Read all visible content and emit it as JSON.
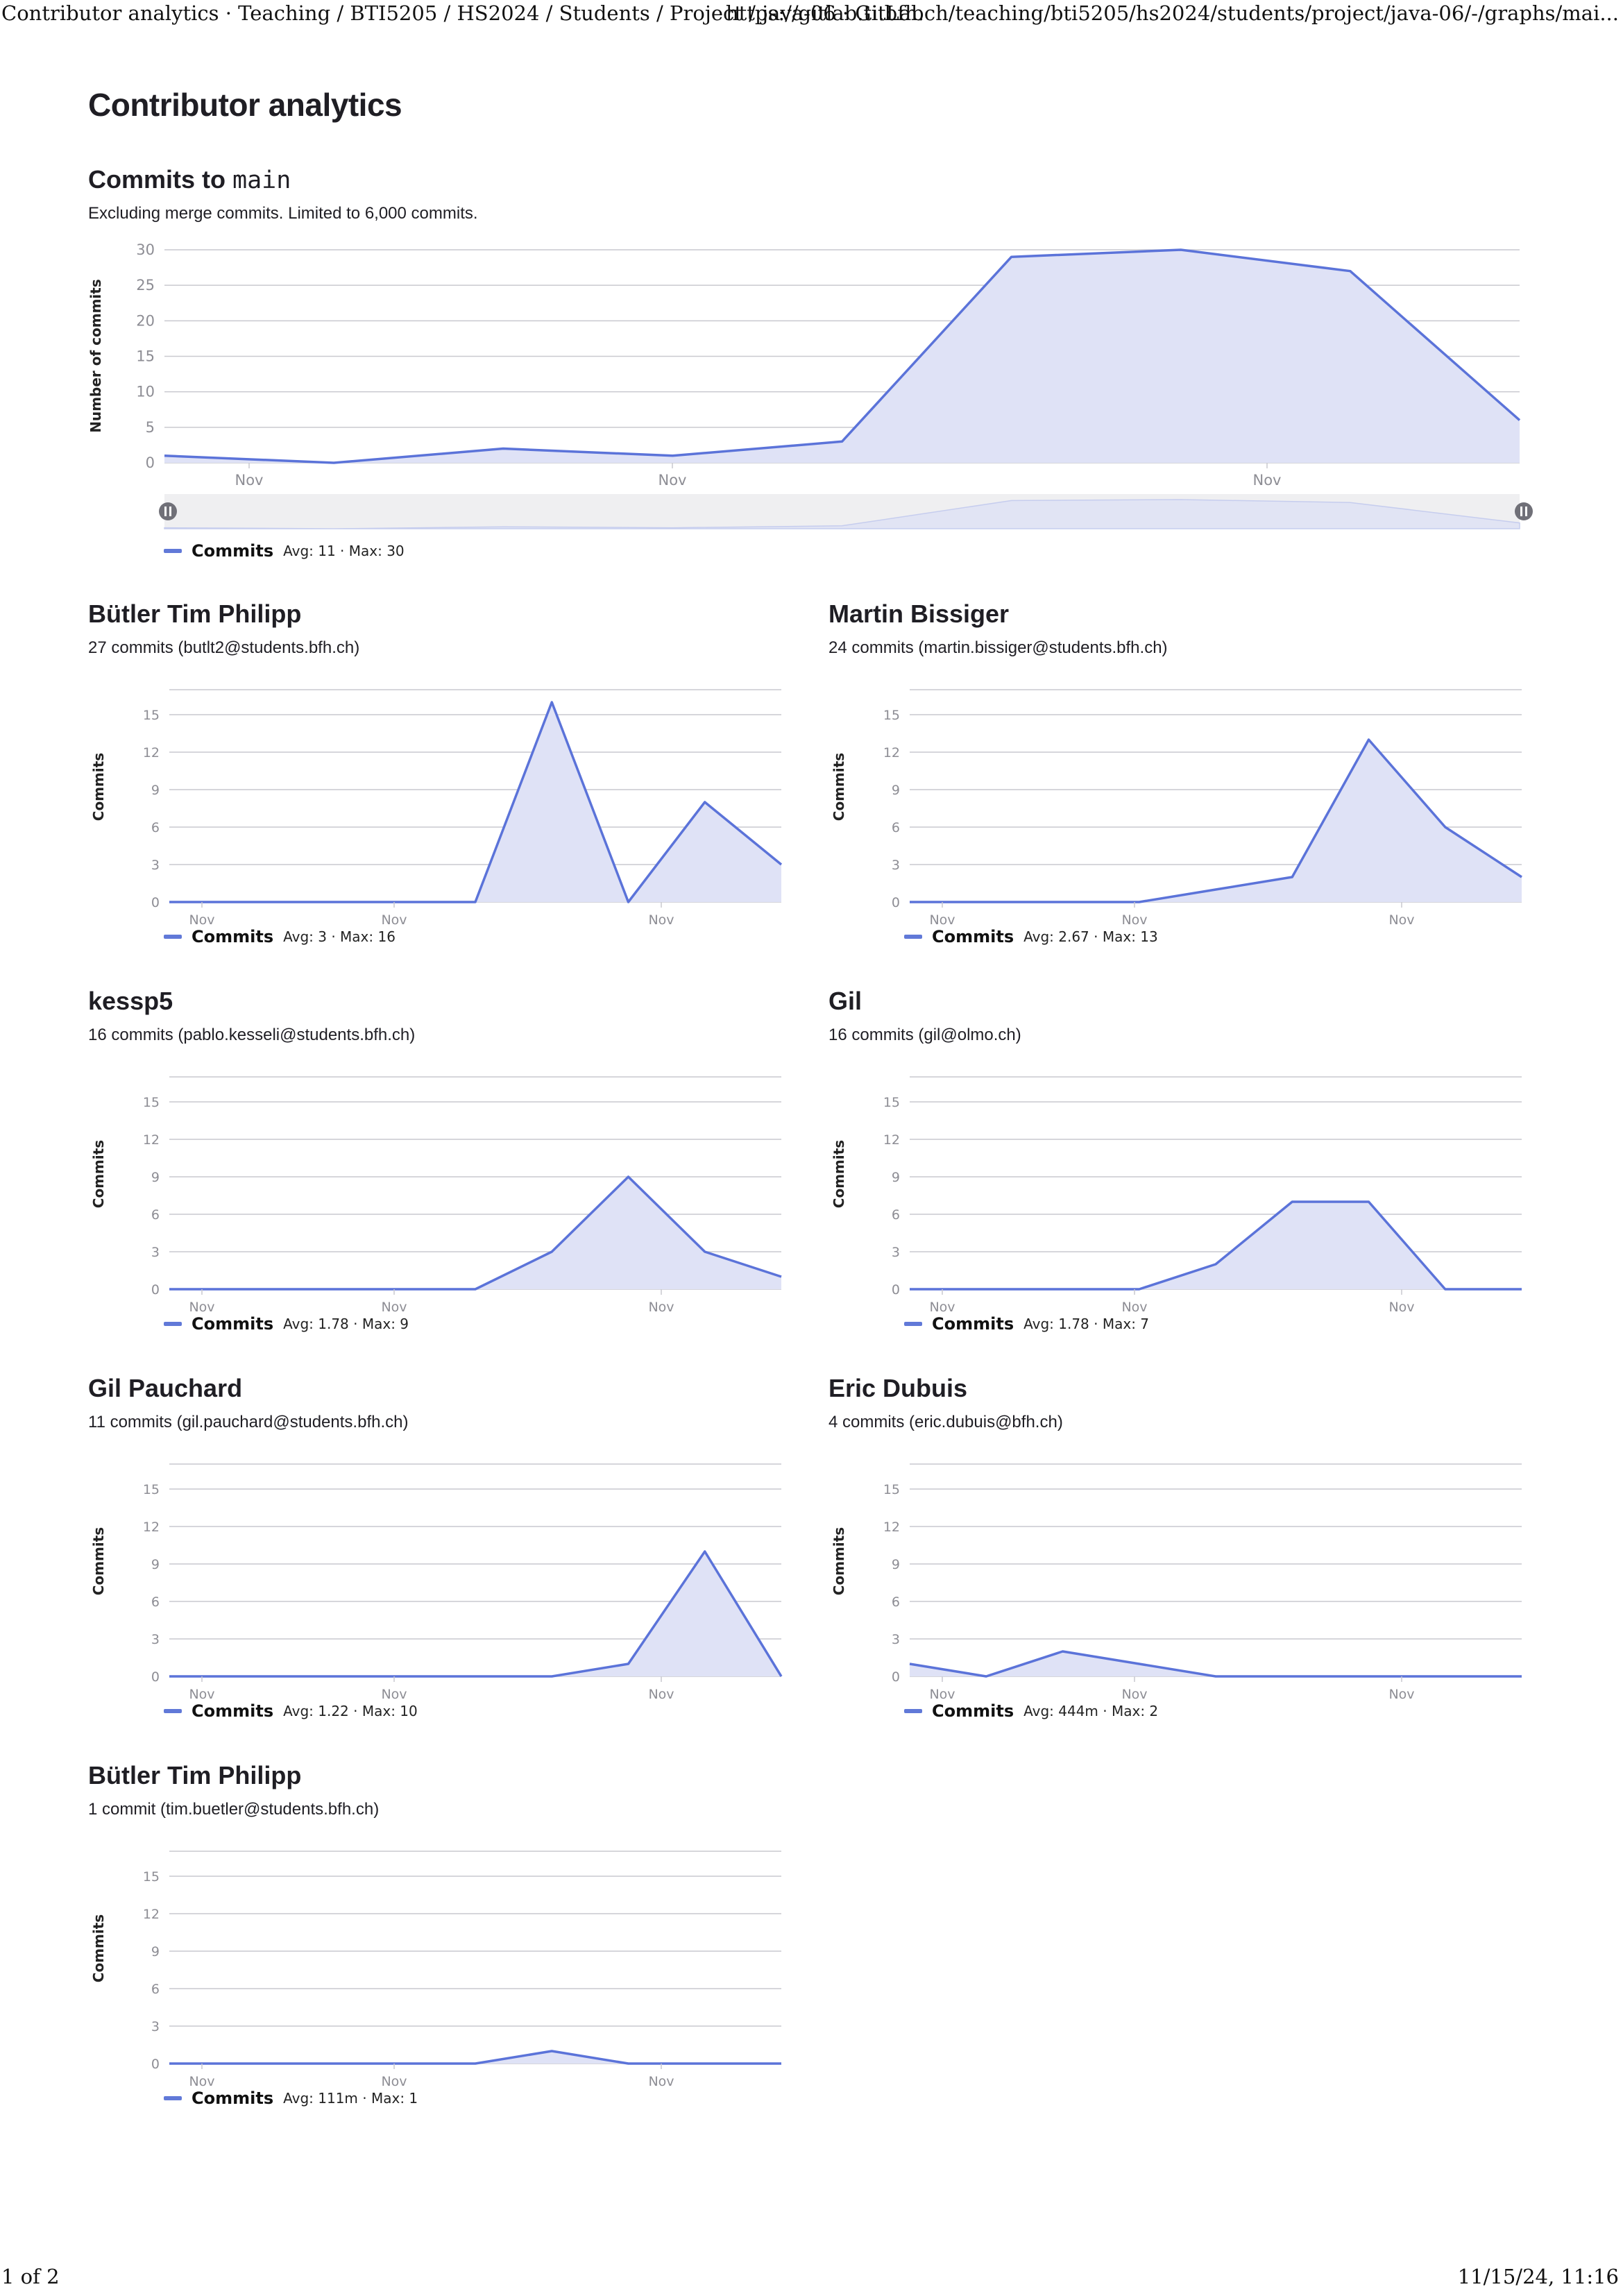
{
  "print_header": {
    "title": "Contributor analytics · Teaching / BTI5205 / HS2024 / Students / Project / java-06 · GitLab",
    "url": "https://gitlab.ti.bfh.ch/teaching/bti5205/hs2024/students/project/java-06/-/graphs/mai..."
  },
  "print_footer": {
    "page": "1 of 2",
    "datetime": "11/15/24, 11:16"
  },
  "page_title": "Contributor analytics",
  "main_chart": {
    "title_prefix": "Commits to",
    "branch": "main",
    "description": "Excluding merge commits. Limited to 6,000 commits.",
    "legend_label": "Commits",
    "legend_stats": "Avg: 11 · Max: 30"
  },
  "colors": {
    "line": "#5b73d9",
    "fill": "#dfe2f6",
    "grid": "#c9c9cf",
    "axis_text": "#8d8d94"
  },
  "chart_data": [
    {
      "type": "area",
      "id": "main",
      "ylabel": "Number of commits",
      "yticks": [
        0,
        5,
        10,
        15,
        20,
        25,
        30
      ],
      "ylim": [
        0,
        30
      ],
      "x_tick_labels": [
        "Nov",
        "Nov",
        "Nov"
      ],
      "series": [
        {
          "name": "Commits",
          "values": [
            1,
            0,
            2,
            1,
            3,
            29,
            30,
            27,
            6
          ]
        }
      ],
      "grid": true
    },
    {
      "type": "area",
      "id": "c1",
      "name": "Bütler Tim Philipp",
      "subtitle": "27 commits (butlt2@students.bfh.ch)",
      "ylabel": "Commits",
      "yticks": [
        0,
        3,
        6,
        9,
        12,
        15
      ],
      "ylim": [
        0,
        16
      ],
      "x_tick_labels": [
        "Nov",
        "Nov",
        "Nov"
      ],
      "series": [
        {
          "name": "Commits",
          "values": [
            0,
            0,
            0,
            0,
            0,
            16,
            0,
            8,
            3
          ]
        }
      ],
      "legend_stats": "Avg: 3 · Max: 16"
    },
    {
      "type": "area",
      "id": "c2",
      "name": "Martin Bissiger",
      "subtitle": "24 commits (martin.bissiger@students.bfh.ch)",
      "ylabel": "Commits",
      "yticks": [
        0,
        3,
        6,
        9,
        12,
        15
      ],
      "ylim": [
        0,
        16
      ],
      "x_tick_labels": [
        "Nov",
        "Nov",
        "Nov"
      ],
      "series": [
        {
          "name": "Commits",
          "values": [
            0,
            0,
            0,
            0,
            1,
            2,
            13,
            6,
            2
          ]
        }
      ],
      "legend_stats": "Avg: 2.67 · Max: 13"
    },
    {
      "type": "area",
      "id": "c3",
      "name": "kessp5",
      "subtitle": "16 commits (pablo.kesseli@students.bfh.ch)",
      "ylabel": "Commits",
      "yticks": [
        0,
        3,
        6,
        9,
        12,
        15
      ],
      "ylim": [
        0,
        16
      ],
      "x_tick_labels": [
        "Nov",
        "Nov",
        "Nov"
      ],
      "series": [
        {
          "name": "Commits",
          "values": [
            0,
            0,
            0,
            0,
            0,
            3,
            9,
            3,
            1
          ]
        }
      ],
      "legend_stats": "Avg: 1.78 · Max: 9"
    },
    {
      "type": "area",
      "id": "c4",
      "name": "Gil",
      "subtitle": "16 commits (gil@olmo.ch)",
      "ylabel": "Commits",
      "yticks": [
        0,
        3,
        6,
        9,
        12,
        15
      ],
      "ylim": [
        0,
        16
      ],
      "x_tick_labels": [
        "Nov",
        "Nov",
        "Nov"
      ],
      "series": [
        {
          "name": "Commits",
          "values": [
            0,
            0,
            0,
            0,
            2,
            7,
            7,
            0,
            0
          ]
        }
      ],
      "legend_stats": "Avg: 1.78 · Max: 7"
    },
    {
      "type": "area",
      "id": "c5",
      "name": "Gil Pauchard",
      "subtitle": "11 commits (gil.pauchard@students.bfh.ch)",
      "ylabel": "Commits",
      "yticks": [
        0,
        3,
        6,
        9,
        12,
        15
      ],
      "ylim": [
        0,
        16
      ],
      "x_tick_labels": [
        "Nov",
        "Nov",
        "Nov"
      ],
      "series": [
        {
          "name": "Commits",
          "values": [
            0,
            0,
            0,
            0,
            0,
            0,
            1,
            10,
            0
          ]
        }
      ],
      "legend_stats": "Avg: 1.22 · Max: 10"
    },
    {
      "type": "area",
      "id": "c6",
      "name": "Eric Dubuis",
      "subtitle": "4 commits (eric.dubuis@bfh.ch)",
      "ylabel": "Commits",
      "yticks": [
        0,
        3,
        6,
        9,
        12,
        15
      ],
      "ylim": [
        0,
        16
      ],
      "x_tick_labels": [
        "Nov",
        "Nov",
        "Nov"
      ],
      "series": [
        {
          "name": "Commits",
          "values": [
            1,
            0,
            2,
            1,
            0,
            0,
            0,
            0,
            0
          ]
        }
      ],
      "legend_stats": "Avg: 444m · Max: 2"
    },
    {
      "type": "area",
      "id": "c7",
      "name": "Bütler Tim Philipp",
      "subtitle": "1 commit (tim.buetler@students.bfh.ch)",
      "ylabel": "Commits",
      "yticks": [
        0,
        3,
        6,
        9,
        12,
        15
      ],
      "ylim": [
        0,
        16
      ],
      "x_tick_labels": [
        "Nov",
        "Nov",
        "Nov"
      ],
      "series": [
        {
          "name": "Commits",
          "values": [
            0,
            0,
            0,
            0,
            0,
            1,
            0,
            0,
            0
          ]
        }
      ],
      "legend_stats": "Avg: 111m · Max: 1"
    }
  ]
}
